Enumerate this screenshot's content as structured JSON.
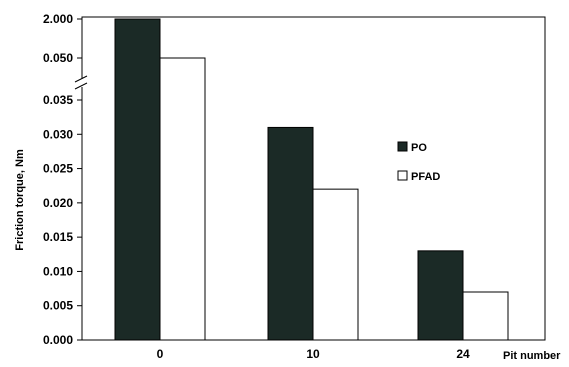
{
  "chart_data": {
    "type": "bar",
    "title": "",
    "xlabel": "Pit number",
    "ylabel": "Friction torque, Nm",
    "categories": [
      "0",
      "10",
      "24"
    ],
    "series": [
      {
        "name": "PO",
        "values": [
          2.0,
          0.031,
          0.013
        ],
        "color": "#1b2a26"
      },
      {
        "name": "PFAD",
        "values": [
          0.05,
          0.022,
          0.007
        ],
        "color": "#ffffff"
      }
    ],
    "ylim": [
      0,
      2.0
    ],
    "y_axis_break": {
      "lower_range": [
        0,
        0.035
      ],
      "upper_range": [
        0.05,
        2.0
      ]
    },
    "y_tick_labels": [
      "0.000",
      "0.005",
      "0.010",
      "0.015",
      "0.020",
      "0.025",
      "0.030",
      "0.035",
      "0.050",
      "2.000"
    ],
    "grid": false,
    "legend_position": "right"
  }
}
